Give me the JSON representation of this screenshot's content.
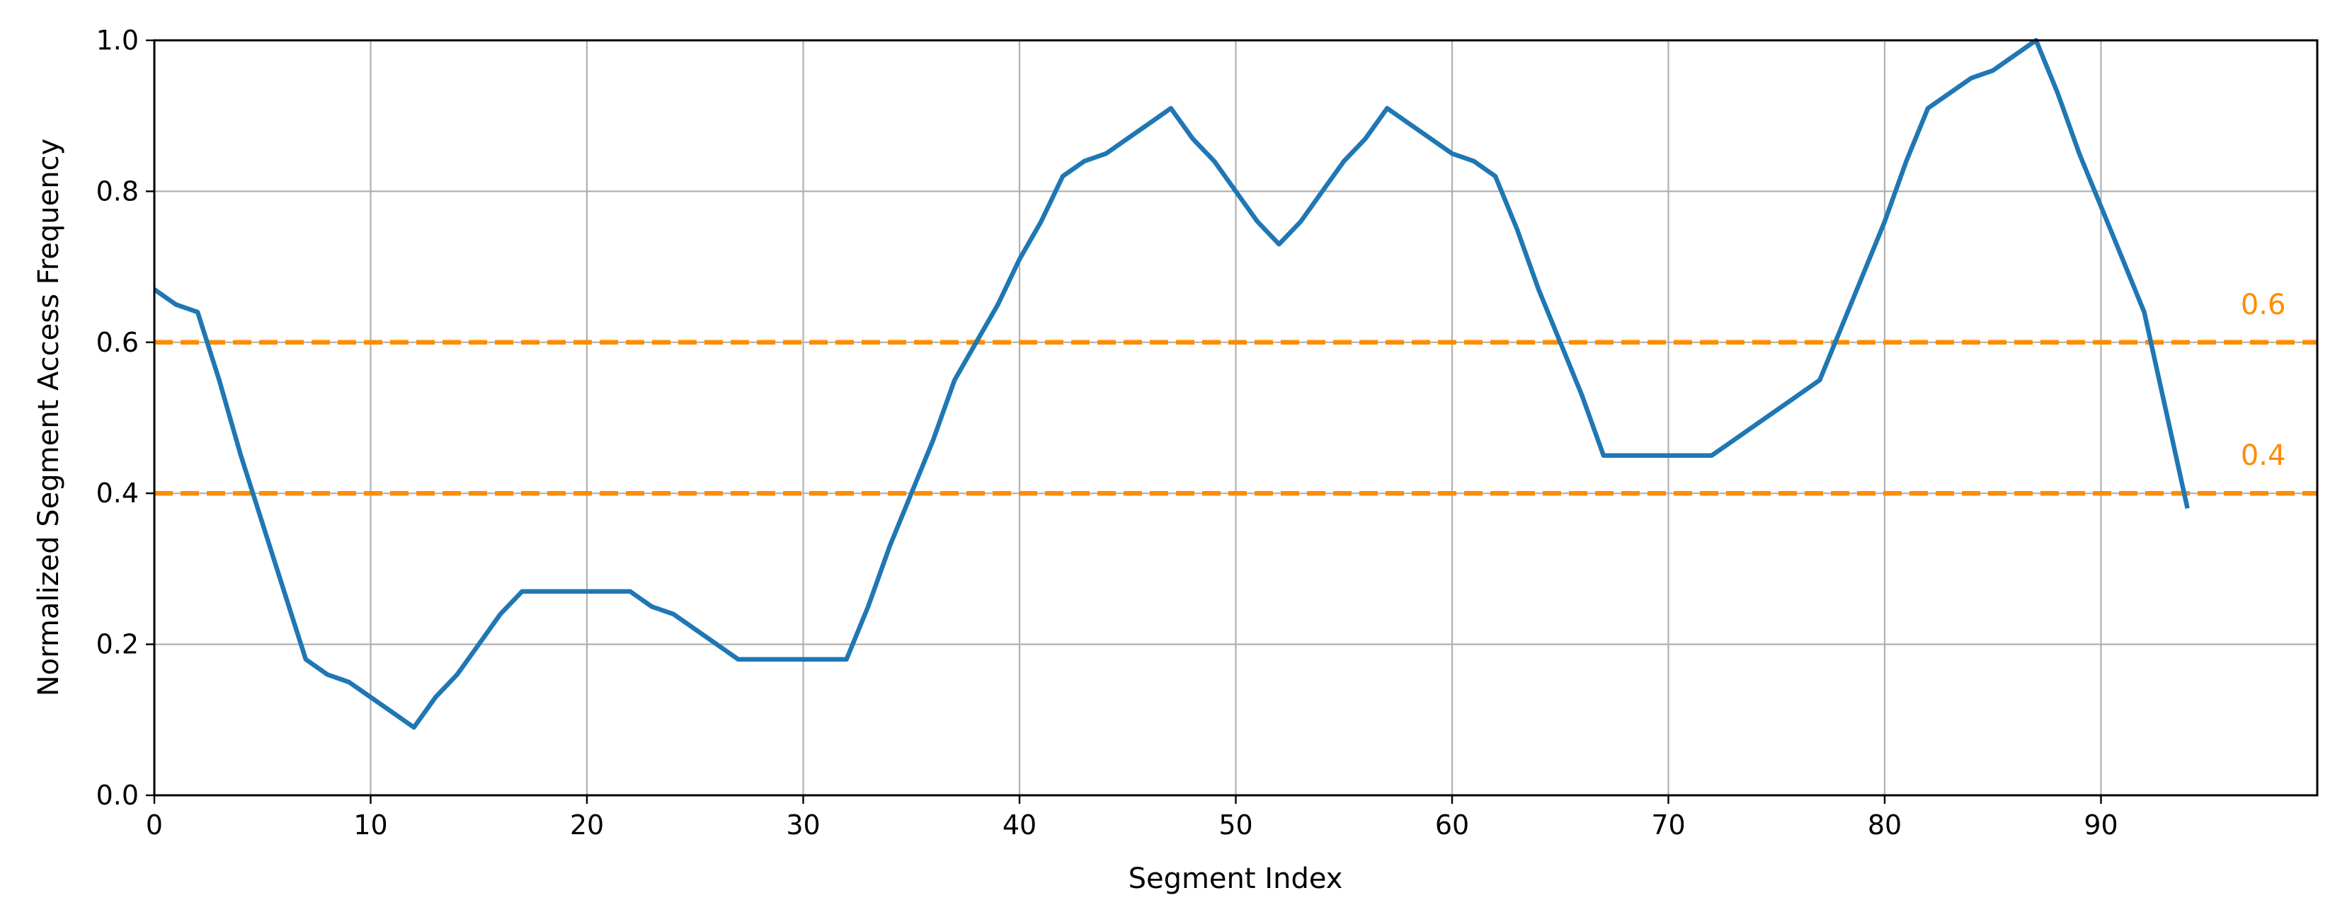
{
  "chart_data": {
    "type": "line",
    "xlabel": "Segment Index",
    "ylabel": "Normalized Segment Access Frequency",
    "xlim": [
      0,
      100
    ],
    "ylim": [
      0.0,
      1.0
    ],
    "x_ticks": [
      0,
      10,
      20,
      30,
      40,
      50,
      60,
      70,
      80,
      90
    ],
    "y_ticks": [
      0.0,
      0.2,
      0.4,
      0.6,
      0.8,
      1.0
    ],
    "y_tick_labels": [
      "0.0",
      "0.2",
      "0.4",
      "0.6",
      "0.8",
      "1.0"
    ],
    "grid": true,
    "series": [
      {
        "color": "#1f77b4",
        "x": [
          0,
          1,
          2,
          3,
          4,
          5,
          6,
          7,
          8,
          9,
          10,
          11,
          12,
          13,
          14,
          15,
          16,
          17,
          18,
          19,
          20,
          21,
          22,
          23,
          24,
          25,
          26,
          27,
          28,
          29,
          30,
          31,
          32,
          33,
          34,
          35,
          36,
          37,
          38,
          39,
          40,
          41,
          42,
          43,
          44,
          45,
          46,
          47,
          48,
          49,
          50,
          51,
          52,
          53,
          54,
          55,
          56,
          57,
          58,
          59,
          60,
          61,
          62,
          63,
          64,
          65,
          66,
          67,
          68,
          69,
          70,
          71,
          72,
          73,
          74,
          75,
          76,
          77,
          78,
          79,
          80,
          81,
          82,
          83,
          84,
          85,
          86,
          87,
          88,
          89,
          90,
          91,
          92,
          93,
          94
        ],
        "y": [
          0.67,
          0.65,
          0.64,
          0.55,
          0.45,
          0.36,
          0.27,
          0.18,
          0.16,
          0.15,
          0.13,
          0.11,
          0.09,
          0.13,
          0.16,
          0.2,
          0.24,
          0.27,
          0.27,
          0.27,
          0.27,
          0.27,
          0.27,
          0.25,
          0.24,
          0.22,
          0.2,
          0.18,
          0.18,
          0.18,
          0.18,
          0.18,
          0.18,
          0.25,
          0.33,
          0.4,
          0.47,
          0.55,
          0.6,
          0.65,
          0.71,
          0.76,
          0.82,
          0.84,
          0.85,
          0.87,
          0.89,
          0.91,
          0.87,
          0.84,
          0.8,
          0.76,
          0.73,
          0.76,
          0.8,
          0.84,
          0.87,
          0.91,
          0.89,
          0.87,
          0.85,
          0.84,
          0.82,
          0.75,
          0.67,
          0.6,
          0.53,
          0.45,
          0.45,
          0.45,
          0.45,
          0.45,
          0.45,
          0.47,
          0.49,
          0.51,
          0.53,
          0.55,
          0.62,
          0.69,
          0.76,
          0.84,
          0.91,
          0.93,
          0.95,
          0.96,
          0.98,
          1.0,
          0.93,
          0.85,
          0.78,
          0.71,
          0.64,
          0.51,
          0.38
        ]
      }
    ],
    "thresholds": [
      {
        "value": 0.6,
        "label": "0.6",
        "color": "#ff8c00"
      },
      {
        "value": 0.4,
        "label": "0.4",
        "color": "#ff8c00"
      }
    ]
  }
}
